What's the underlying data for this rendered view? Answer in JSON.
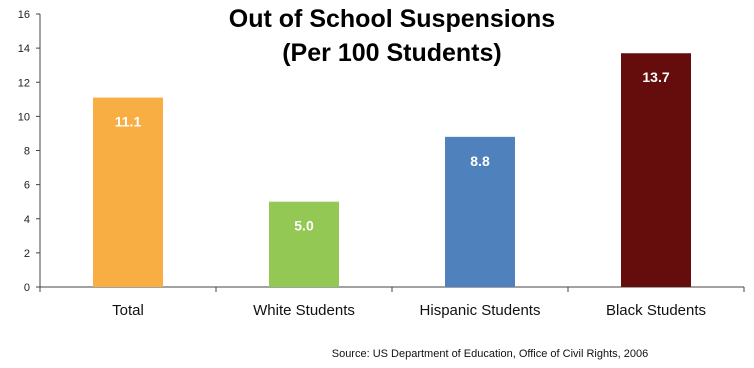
{
  "chart_data": {
    "type": "bar",
    "title_lines": [
      "Out of School Suspensions",
      "(Per 100 Students)"
    ],
    "categories": [
      "Total",
      "White Students",
      "Hispanic Students",
      "Black Students"
    ],
    "values": [
      11.1,
      5.0,
      8.8,
      13.7
    ],
    "value_labels": [
      "11.1",
      "5.0",
      "8.8",
      "13.7"
    ],
    "colors": [
      "#F9AE43",
      "#92C853",
      "#4F81BD",
      "#650D0D"
    ],
    "xlabel": "",
    "ylabel": "",
    "ylim": [
      0,
      16
    ],
    "yticks": [
      0,
      2,
      4,
      6,
      8,
      10,
      12,
      14,
      16
    ],
    "grid": false,
    "source": "Source:  US Department of Education, Office of Civil Rights, 2006"
  }
}
